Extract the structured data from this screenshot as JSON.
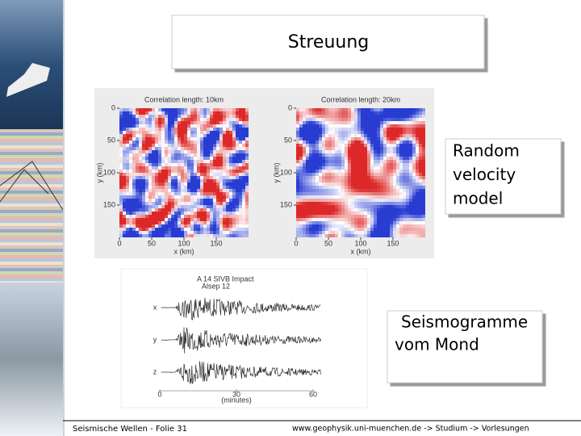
{
  "title": "Streuung",
  "random_model": {
    "xlim": [
      0,
      200
    ],
    "ylim": [
      0,
      200
    ],
    "panels": [
      {
        "title": "Correlation length: 10km",
        "xlabel": "x (km)",
        "ylabel": "y (km)",
        "xticks": [
          0,
          50,
          100,
          150
        ],
        "yticks": [
          0,
          50,
          100,
          150
        ]
      },
      {
        "title": "Correlation length: 20km",
        "xlabel": "x (km)",
        "ylabel": "y (km)",
        "xticks": [
          0,
          50,
          100,
          150
        ],
        "yticks": [
          0,
          50,
          100,
          150
        ]
      }
    ]
  },
  "seismogram": {
    "title": "A 14 SIVB Impact",
    "subtitle": "Alsep 12",
    "channels": [
      "x",
      "y",
      "z"
    ],
    "xlim": [
      0,
      60
    ],
    "xticks": [
      0,
      30,
      60
    ],
    "xlabel": "(minutes)"
  },
  "boxes": [
    {
      "lines": [
        "Random",
        "velocity",
        "model"
      ]
    },
    {
      "lines": [
        "Seismogramme",
        "vom Mond"
      ]
    }
  ],
  "footer": {
    "left": "Seismische Wellen - Folie 31",
    "right": "www.geophysik.uni-muenchen.de -> Studium -> Vorlesungen"
  }
}
